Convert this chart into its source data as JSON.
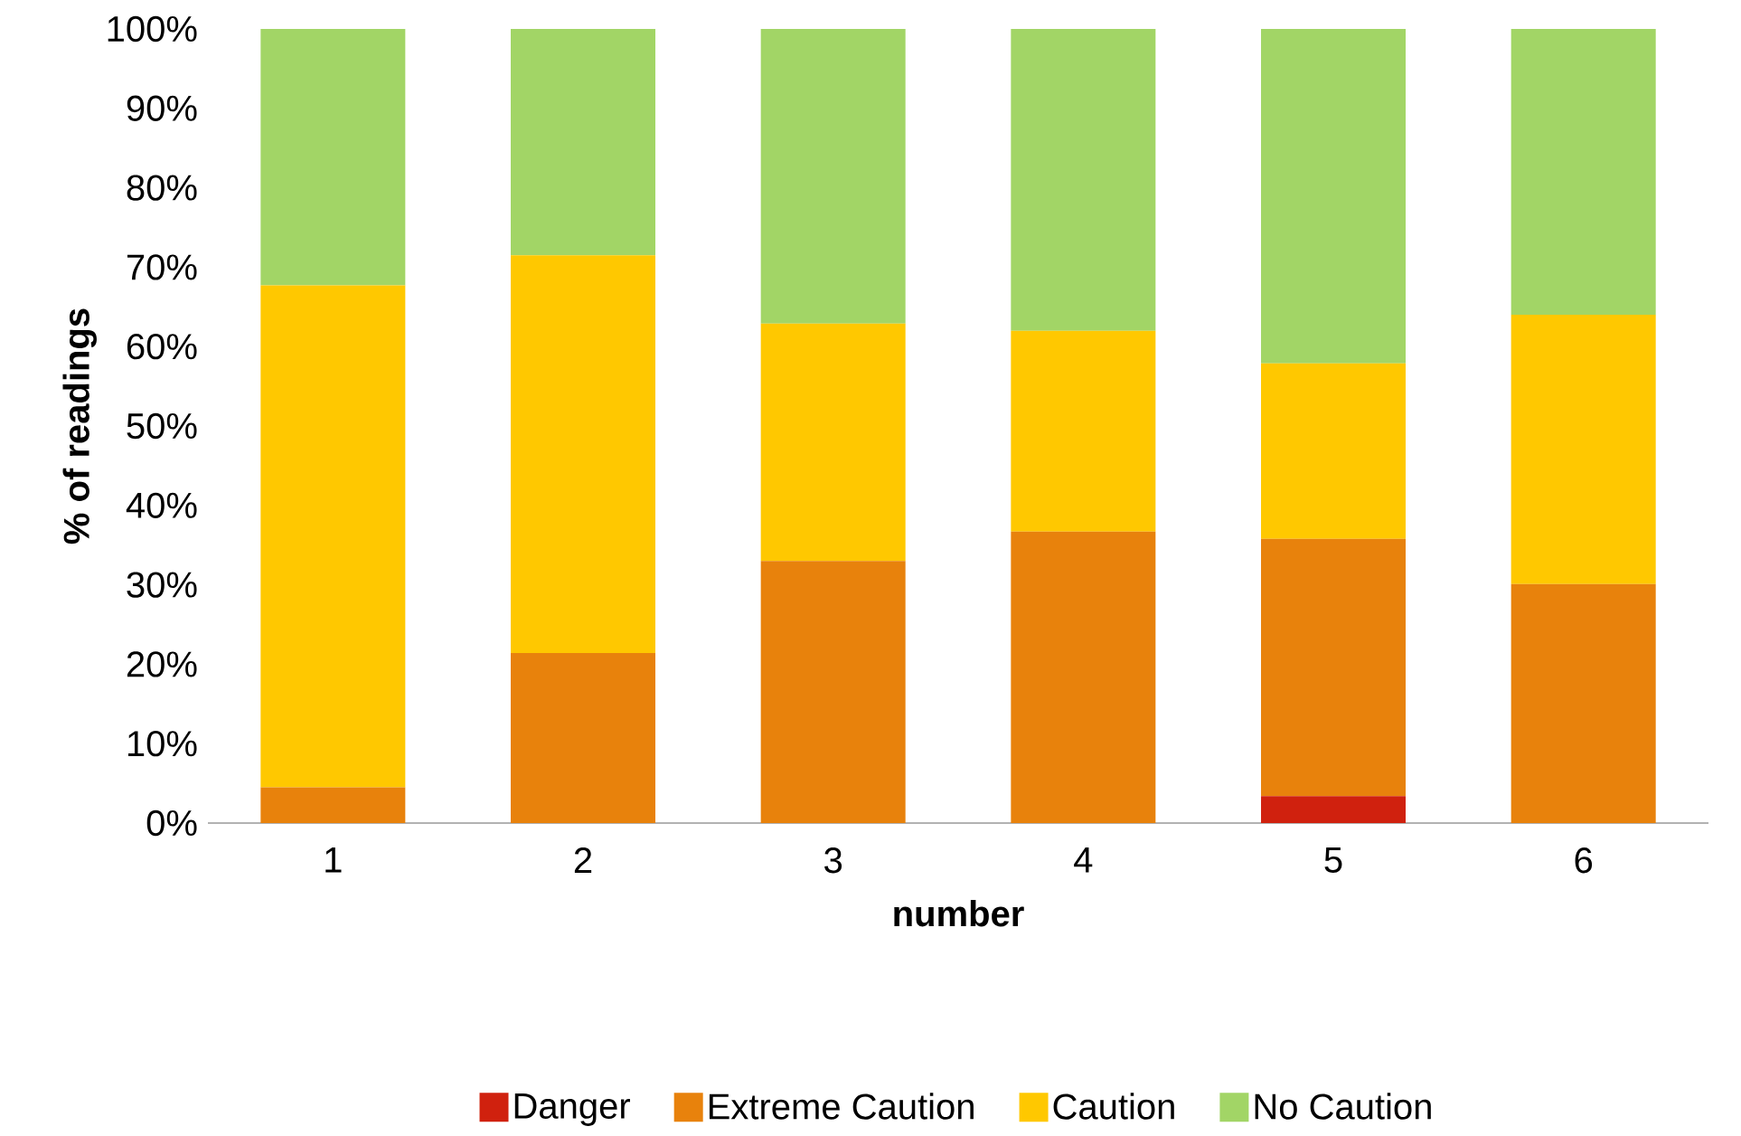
{
  "chart_data": {
    "type": "bar",
    "stacked": true,
    "xlabel": "number",
    "ylabel": "% of readings",
    "categories": [
      "1",
      "2",
      "3",
      "4",
      "5",
      "6"
    ],
    "series": [
      {
        "name": "Danger",
        "color": "#d0210e",
        "values": [
          0,
          0,
          0,
          0,
          3.4,
          0
        ]
      },
      {
        "name": "Extreme Caution",
        "color": "#e8820c",
        "values": [
          4.5,
          21.4,
          33.0,
          36.7,
          32.4,
          30.1
        ]
      },
      {
        "name": "Caution",
        "color": "#ffc800",
        "values": [
          63.2,
          50.1,
          29.9,
          25.3,
          22.1,
          33.9
        ]
      },
      {
        "name": "No Caution",
        "color": "#a2d566",
        "values": [
          32.3,
          28.5,
          37.1,
          38.0,
          42.1,
          36.0
        ]
      }
    ],
    "ylim": [
      0,
      100
    ],
    "yticks": [
      {
        "value": 0,
        "label": "0%"
      },
      {
        "value": 10,
        "label": "10%"
      },
      {
        "value": 20,
        "label": "20%"
      },
      {
        "value": 30,
        "label": "30%"
      },
      {
        "value": 40,
        "label": "40%"
      },
      {
        "value": 50,
        "label": "50%"
      },
      {
        "value": 60,
        "label": "60%"
      },
      {
        "value": 70,
        "label": "70%"
      },
      {
        "value": 80,
        "label": "80%"
      },
      {
        "value": 90,
        "label": "90%"
      },
      {
        "value": 100,
        "label": "100%"
      }
    ],
    "legend": "bottom"
  }
}
